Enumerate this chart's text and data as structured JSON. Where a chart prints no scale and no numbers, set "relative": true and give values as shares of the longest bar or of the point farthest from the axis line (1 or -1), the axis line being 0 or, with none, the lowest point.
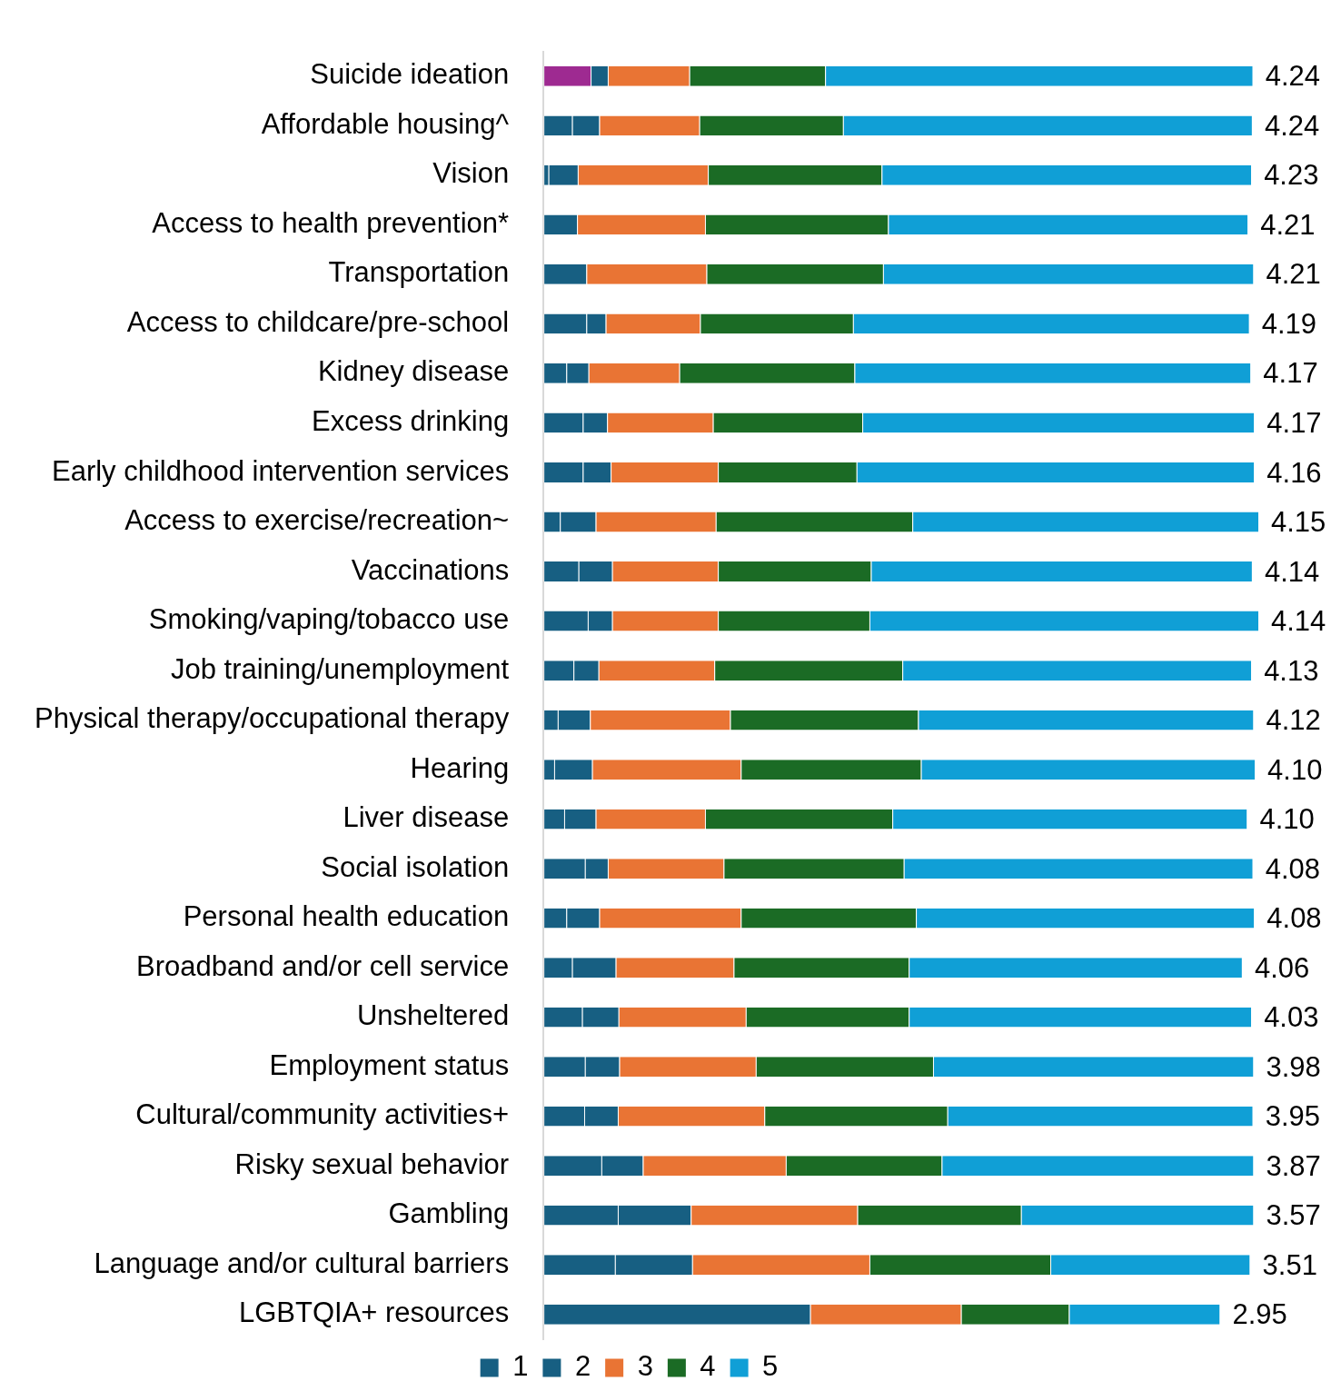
{
  "chart_data": {
    "type": "bar",
    "orientation": "horizontal",
    "stacked": true,
    "relative": true,
    "legend": "bottom",
    "grid": false,
    "categories": [
      "Suicide ideation",
      "Affordable housing^",
      "Vision",
      "Access to health prevention*",
      "Transportation",
      "Access to childcare/pre-school",
      "Kidney disease",
      "Excess drinking",
      "Early childhood intervention services",
      "Access to exercise/recreation~",
      "Vaccinations",
      "Smoking/vaping/tobacco use",
      "Job training/unemployment",
      "Physical therapy/occupational therapy",
      "Hearing",
      "Liver disease",
      "Social isolation",
      "Personal health education",
      "Broadband and/or cell service",
      "Unsheltered",
      "Employment status",
      "Cultural/community activities+",
      "Risky sexual behavior",
      "Gambling",
      "Language and/or cultural barriers",
      "LGBTQIA+ resources"
    ],
    "series": [
      {
        "name": "1",
        "color": "#175f82",
        "colors": [
          "#9e2a91",
          "#175f82",
          "#175f82",
          "#175f82",
          "#175f82",
          "#175f82",
          "#175f82",
          "#175f82",
          "#175f82",
          "#175f82",
          "#175f82",
          "#175f82",
          "#175f82",
          "#175f82",
          "#175f82",
          "#175f82",
          "#175f82",
          "#175f82",
          "#175f82",
          "#175f82",
          "#175f82",
          "#175f82",
          "#175f82",
          "#175f82",
          "#175f82",
          "#175f82"
        ],
        "values": [
          0.066,
          0.04,
          0.007,
          0,
          0,
          0.06,
          0.032,
          0.055,
          0.055,
          0.023,
          0.049,
          0.062,
          0.042,
          0.02,
          0.015,
          0.029,
          0.058,
          0.032,
          0.04,
          0.054,
          0.058,
          0.057,
          0.081,
          0.104,
          0.1,
          0.373
        ]
      },
      {
        "name": "2",
        "color": "#175f82",
        "values": [
          0.024,
          0.038,
          0.041,
          0.047,
          0.06,
          0.027,
          0.031,
          0.034,
          0.039,
          0.05,
          0.047,
          0.034,
          0.035,
          0.045,
          0.053,
          0.044,
          0.032,
          0.046,
          0.061,
          0.051,
          0.048,
          0.047,
          0.058,
          0.102,
          0.108,
          0
        ]
      },
      {
        "name": "3",
        "color": "#e97434",
        "values": [
          0.114,
          0.14,
          0.182,
          0.179,
          0.168,
          0.132,
          0.127,
          0.148,
          0.15,
          0.168,
          0.148,
          0.148,
          0.162,
          0.196,
          0.208,
          0.153,
          0.162,
          0.198,
          0.165,
          0.178,
          0.191,
          0.205,
          0.2,
          0.233,
          0.248,
          0.211
        ]
      },
      {
        "name": "4",
        "color": "#1b6b25",
        "values": [
          0.19,
          0.201,
          0.243,
          0.256,
          0.247,
          0.214,
          0.245,
          0.209,
          0.194,
          0.275,
          0.214,
          0.212,
          0.263,
          0.263,
          0.252,
          0.262,
          0.252,
          0.245,
          0.245,
          0.228,
          0.248,
          0.256,
          0.218,
          0.229,
          0.253,
          0.151
        ]
      },
      {
        "name": "5",
        "color": "#109fd6",
        "values": [
          0.598,
          0.572,
          0.517,
          0.503,
          0.518,
          0.554,
          0.554,
          0.548,
          0.556,
          0.484,
          0.533,
          0.544,
          0.488,
          0.469,
          0.467,
          0.496,
          0.488,
          0.473,
          0.466,
          0.479,
          0.448,
          0.427,
          0.436,
          0.325,
          0.279,
          0.211
        ]
      }
    ],
    "annotations": [
      "4.24",
      "4.24",
      "4.23",
      "4.21",
      "4.21",
      "4.19",
      "4.17",
      "4.17",
      "4.16",
      "4.15",
      "4.14",
      "4.14",
      "4.13",
      "4.12",
      "4.10",
      "4.10",
      "4.08",
      "4.08",
      "4.06",
      "4.03",
      "3.98",
      "3.95",
      "3.87",
      "3.57",
      "3.51",
      "2.95"
    ]
  }
}
